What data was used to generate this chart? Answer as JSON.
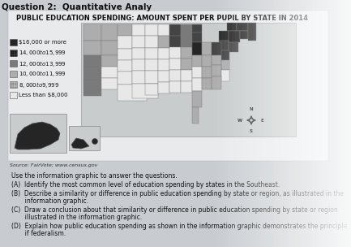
{
  "title_top": "Question 2:  Quantitative Analy",
  "map_title": "PUBLIC EDUCATION SPENDING: AMOUNT SPENT PER PUPIL BY STATE IN 2014",
  "source": "Source: FairVote; www.census.gov",
  "legend_items": [
    {
      "label": "$16,000 or more",
      "color": "#2a2a2a"
    },
    {
      "label": "$14,000 to $15,999",
      "color": "#555555",
      "pattern": true
    },
    {
      "label": "$12,000 to $13,999",
      "color": "#888888"
    },
    {
      "label": "$10,000 to $11,999",
      "color": "#b8b8b8"
    },
    {
      "label": "$8,000 to $9,999",
      "color": "#d0d0d0",
      "pattern2": true
    },
    {
      "label": "Less than $8,000",
      "color": "#f0f0f0"
    }
  ],
  "questions": [
    "Use the information graphic to answer the questions.",
    "(A)  Identify the most common level of education spending by states in the Southeast.",
    "(B)  Describe a similarity or difference in public education spending by state or region, as illustrated in the",
    "       information graphic.",
    "(C)  Draw a conclusion about that similarity or difference in public education spending by state or region",
    "       illustrated in the information graphic.",
    "(D)  Explain how public education spending as shown in the information graphic demonstrates the principle",
    "       if federalism."
  ],
  "page_bg": "#c8ccd0",
  "card_bg": "#dde0e4",
  "map_bg": "#c8cccc",
  "text_color": "#111111",
  "title_fontsize": 6.0,
  "legend_fontsize": 5.0,
  "question_fontsize": 5.5,
  "glare_right": true
}
